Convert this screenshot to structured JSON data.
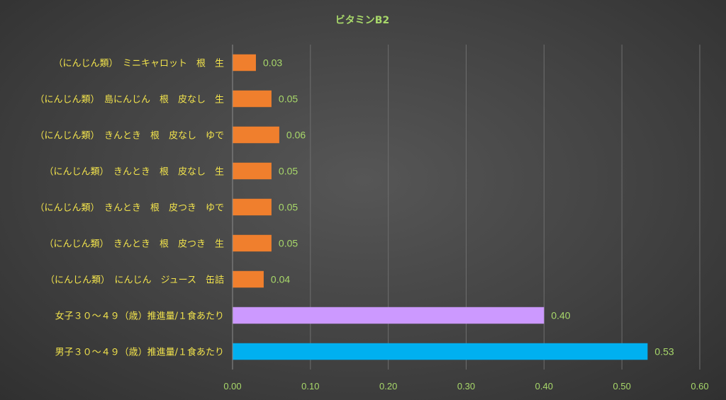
{
  "chart_data": {
    "type": "bar",
    "orientation": "horizontal",
    "title": "ビタミンB2",
    "xlabel": "",
    "ylabel": "",
    "xlim": [
      0,
      0.6
    ],
    "ticks": [
      "0.00",
      "0.10",
      "0.20",
      "0.30",
      "0.40",
      "0.50",
      "0.60"
    ],
    "grid": true,
    "categories": [
      "（にんじん類）　ミニキャロット　根　生",
      "（にんじん類）　島にんじん　根　皮なし　生",
      "（にんじん類）　きんとき　根　皮なし　ゆで",
      "（にんじん類）　きんとき　根　皮なし　生",
      "（にんじん類）　きんとき　根　皮つき　ゆで",
      "（にんじん類）　きんとき　根　皮つき　生",
      "（にんじん類）　にんじん　ジュース　缶詰",
      "女子３０～４９（歳）推進量/１食あたり",
      "男子３０～４９（歳）推進量/１食あたり"
    ],
    "values": [
      0.03,
      0.05,
      0.06,
      0.05,
      0.05,
      0.05,
      0.04,
      0.4,
      0.533
    ],
    "value_labels": [
      "0.03",
      "0.05",
      "0.06",
      "0.05",
      "0.05",
      "0.05",
      "0.04",
      "0.40",
      "0.53"
    ],
    "bar_colors": [
      "#F07F2D",
      "#F07F2D",
      "#F07F2D",
      "#F07F2D",
      "#F07F2D",
      "#F07F2D",
      "#F07F2D",
      "#CC99FF",
      "#00B0F0"
    ]
  },
  "colors": {
    "title": "#A8D86A",
    "category_label": "#F2E34C",
    "tick_label": "#A8D86A",
    "data_label": "#A8D86A",
    "grid": "#6E6E6E",
    "axis": "#8C8C8C"
  }
}
